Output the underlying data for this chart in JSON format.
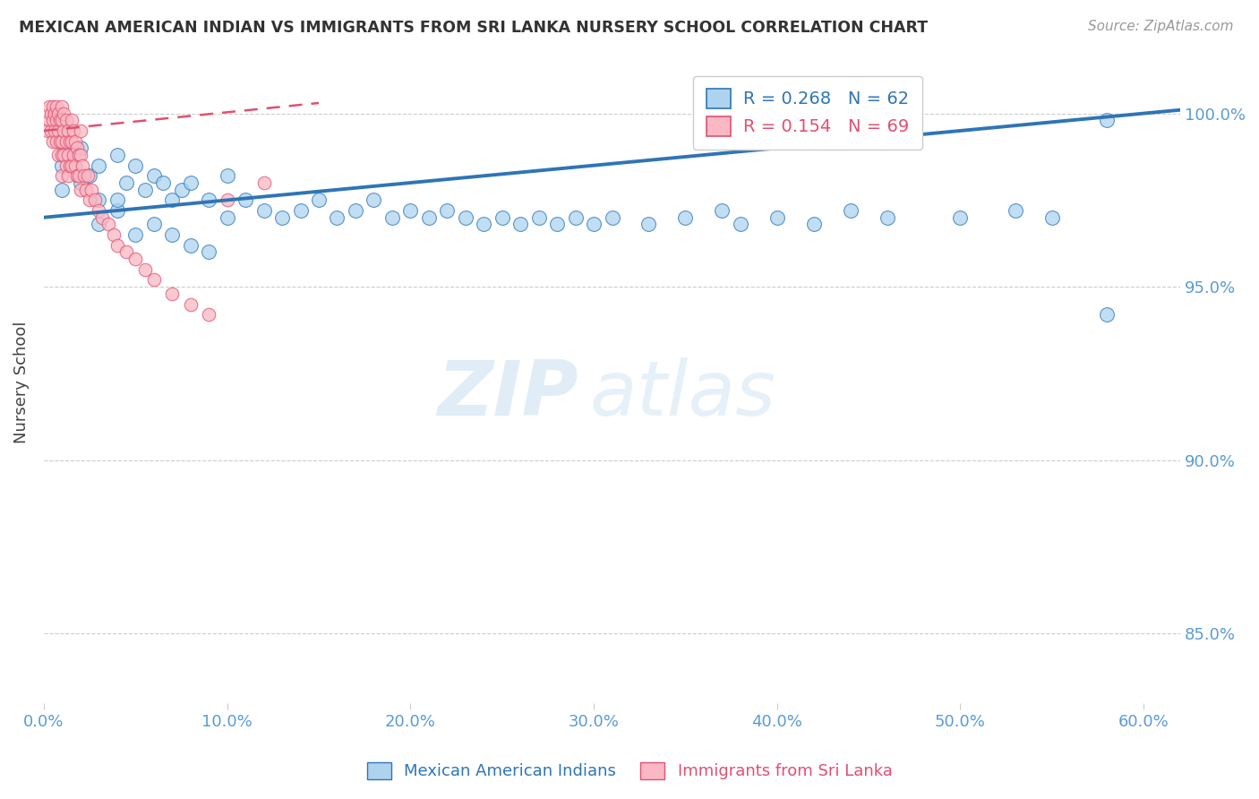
{
  "title": "MEXICAN AMERICAN INDIAN VS IMMIGRANTS FROM SRI LANKA NURSERY SCHOOL CORRELATION CHART",
  "source": "Source: ZipAtlas.com",
  "ylabel": "Nursery School",
  "y_ticks": [
    85.0,
    90.0,
    95.0,
    100.0
  ],
  "x_tick_positions": [
    0.0,
    0.1,
    0.2,
    0.3,
    0.4,
    0.5,
    0.6
  ],
  "xlim": [
    0.0,
    0.62
  ],
  "ylim": [
    83.0,
    101.5
  ],
  "blue_R": 0.268,
  "blue_N": 62,
  "pink_R": 0.154,
  "pink_N": 69,
  "blue_color": "#add3ef",
  "pink_color": "#f9b8c4",
  "blue_line_color": "#2e75b6",
  "pink_line_color": "#e05070",
  "legend_label_blue": "Mexican American Indians",
  "legend_label_pink": "Immigrants from Sri Lanka",
  "blue_trend_x0": 0.0,
  "blue_trend_y0": 97.0,
  "blue_trend_x1": 0.62,
  "blue_trend_y1": 100.1,
  "pink_trend_x0": 0.0,
  "pink_trend_y0": 99.5,
  "pink_trend_x1": 0.15,
  "pink_trend_y1": 100.3,
  "blue_dots_x": [
    0.01,
    0.01,
    0.015,
    0.02,
    0.025,
    0.03,
    0.03,
    0.04,
    0.04,
    0.045,
    0.05,
    0.055,
    0.06,
    0.065,
    0.07,
    0.075,
    0.08,
    0.09,
    0.1,
    0.1,
    0.11,
    0.12,
    0.13,
    0.14,
    0.15,
    0.16,
    0.17,
    0.18,
    0.19,
    0.2,
    0.21,
    0.22,
    0.23,
    0.24,
    0.25,
    0.26,
    0.27,
    0.28,
    0.29,
    0.3,
    0.31,
    0.33,
    0.35,
    0.37,
    0.38,
    0.4,
    0.42,
    0.44,
    0.46,
    0.5,
    0.53,
    0.55,
    0.58,
    0.02,
    0.03,
    0.04,
    0.05,
    0.06,
    0.07,
    0.08,
    0.09,
    0.58
  ],
  "blue_dots_y": [
    98.5,
    97.8,
    98.8,
    99.0,
    98.2,
    98.5,
    97.5,
    98.8,
    97.2,
    98.0,
    98.5,
    97.8,
    98.2,
    98.0,
    97.5,
    97.8,
    98.0,
    97.5,
    98.2,
    97.0,
    97.5,
    97.2,
    97.0,
    97.2,
    97.5,
    97.0,
    97.2,
    97.5,
    97.0,
    97.2,
    97.0,
    97.2,
    97.0,
    96.8,
    97.0,
    96.8,
    97.0,
    96.8,
    97.0,
    96.8,
    97.0,
    96.8,
    97.0,
    97.2,
    96.8,
    97.0,
    96.8,
    97.2,
    97.0,
    97.0,
    97.2,
    97.0,
    99.8,
    98.0,
    96.8,
    97.5,
    96.5,
    96.8,
    96.5,
    96.2,
    96.0,
    94.2
  ],
  "pink_dots_x": [
    0.002,
    0.003,
    0.003,
    0.004,
    0.004,
    0.005,
    0.005,
    0.005,
    0.006,
    0.006,
    0.007,
    0.007,
    0.007,
    0.008,
    0.008,
    0.008,
    0.009,
    0.009,
    0.01,
    0.01,
    0.01,
    0.01,
    0.01,
    0.011,
    0.011,
    0.011,
    0.012,
    0.012,
    0.012,
    0.013,
    0.013,
    0.013,
    0.014,
    0.014,
    0.015,
    0.015,
    0.015,
    0.016,
    0.016,
    0.017,
    0.017,
    0.018,
    0.018,
    0.019,
    0.019,
    0.02,
    0.02,
    0.02,
    0.021,
    0.022,
    0.023,
    0.024,
    0.025,
    0.026,
    0.028,
    0.03,
    0.032,
    0.035,
    0.038,
    0.04,
    0.045,
    0.05,
    0.055,
    0.06,
    0.07,
    0.08,
    0.09,
    0.1,
    0.12
  ],
  "pink_dots_y": [
    99.5,
    99.8,
    100.2,
    99.5,
    100.0,
    99.8,
    100.2,
    99.2,
    100.0,
    99.5,
    99.8,
    100.2,
    99.2,
    100.0,
    99.5,
    98.8,
    99.8,
    99.2,
    100.2,
    99.8,
    99.2,
    98.8,
    98.2,
    100.0,
    99.5,
    98.8,
    99.8,
    99.2,
    98.5,
    99.5,
    98.8,
    98.2,
    99.2,
    98.5,
    99.8,
    99.2,
    98.5,
    99.5,
    98.8,
    99.2,
    98.5,
    99.0,
    98.2,
    98.8,
    98.2,
    99.5,
    98.8,
    97.8,
    98.5,
    98.2,
    97.8,
    98.2,
    97.5,
    97.8,
    97.5,
    97.2,
    97.0,
    96.8,
    96.5,
    96.2,
    96.0,
    95.8,
    95.5,
    95.2,
    94.8,
    94.5,
    94.2,
    97.5,
    98.0
  ],
  "watermark_zip": "ZIP",
  "watermark_atlas": "atlas",
  "title_color": "#333333",
  "axis_color": "#5b9bd5",
  "grid_color": "#cccccc"
}
